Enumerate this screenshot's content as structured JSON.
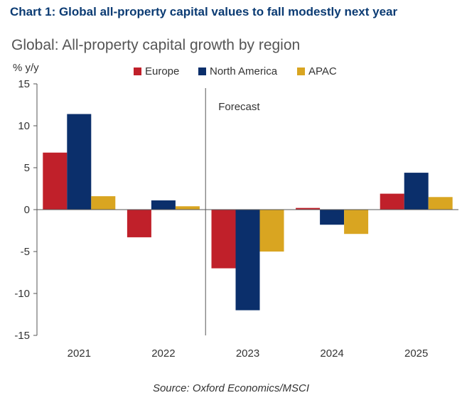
{
  "header": {
    "title": "Chart 1: Global all-property capital values to fall modestly next year"
  },
  "source": "Source: Oxford Economics/MSCI",
  "colors": {
    "Europe": "#c0202a",
    "North America": "#0b2f6b",
    "APAC": "#d9a521",
    "header_text": "#0b3b73"
  },
  "chart_data": {
    "type": "bar",
    "title": "Global: All-property capital growth by region",
    "ylabel": "% y/y",
    "xlabel": "",
    "categories": [
      "2021",
      "2022",
      "2023",
      "2024",
      "2025"
    ],
    "series": [
      {
        "name": "Europe",
        "values": [
          6.8,
          -3.3,
          -7.0,
          0.2,
          1.9
        ]
      },
      {
        "name": "North America",
        "values": [
          11.4,
          1.1,
          -12.0,
          -1.8,
          4.4
        ]
      },
      {
        "name": "APAC",
        "values": [
          1.6,
          0.4,
          -5.0,
          -2.9,
          1.5
        ]
      }
    ],
    "ylim": [
      -15,
      15
    ],
    "yticks": [
      -15,
      -10,
      -5,
      0,
      5,
      10,
      15
    ],
    "annotation": "Forecast",
    "forecast_from": "2023",
    "grid": false,
    "legend_position": "top"
  }
}
